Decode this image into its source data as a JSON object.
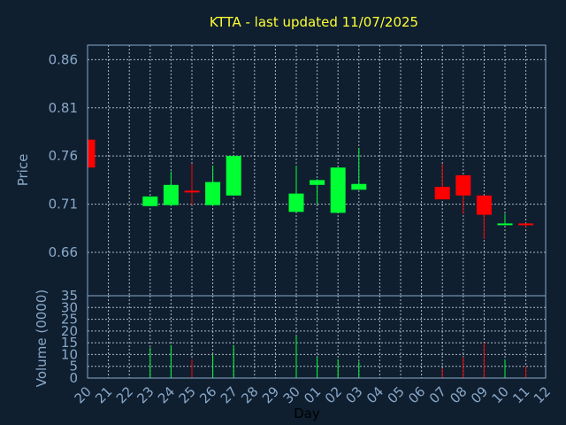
{
  "chart_data": {
    "type": "candlestick",
    "title": "KTTA - last updated 11/07/2025",
    "xlabel": "Day",
    "colors": {
      "background": "#0f1f30",
      "up": "#00ff33",
      "down": "#ff0000",
      "text": "#8aa8c8",
      "title": "#ffff33",
      "grid": "#c8d2dc"
    },
    "x_ticks": [
      "20",
      "21",
      "22",
      "23",
      "24",
      "25",
      "26",
      "27",
      "28",
      "29",
      "30",
      "01",
      "02",
      "03",
      "04",
      "05",
      "06",
      "07",
      "08",
      "09",
      "10",
      "11",
      "12"
    ],
    "price_panel": {
      "ylabel": "Price",
      "ylim": [
        0.615,
        0.875
      ],
      "y_ticks": [
        0.66,
        0.71,
        0.76,
        0.81,
        0.86
      ],
      "y_tick_labels": [
        "0.66",
        "0.71",
        "0.76",
        "0.81",
        "0.86"
      ]
    },
    "volume_panel": {
      "ylabel": "Volume (0000)",
      "ylim": [
        0,
        35
      ],
      "y_ticks": [
        0,
        5,
        10,
        15,
        20,
        25,
        30,
        35
      ],
      "y_tick_labels": [
        "0",
        "5",
        "10",
        "15",
        "20",
        "25",
        "30",
        "35"
      ]
    },
    "candles": [
      {
        "x": "20",
        "open": 0.777,
        "high": 0.777,
        "low": 0.748,
        "close": 0.748,
        "volume": 0
      },
      {
        "x": "23",
        "open": 0.708,
        "high": 0.718,
        "low": 0.708,
        "close": 0.718,
        "volume": 13
      },
      {
        "x": "24",
        "open": 0.709,
        "high": 0.744,
        "low": 0.709,
        "close": 0.73,
        "volume": 14
      },
      {
        "x": "25",
        "open": 0.724,
        "high": 0.752,
        "low": 0.709,
        "close": 0.723,
        "volume": 8
      },
      {
        "x": "26",
        "open": 0.709,
        "high": 0.75,
        "low": 0.709,
        "close": 0.733,
        "volume": 10
      },
      {
        "x": "27",
        "open": 0.719,
        "high": 0.76,
        "low": 0.719,
        "close": 0.76,
        "volume": 14
      },
      {
        "x": "30",
        "open": 0.702,
        "high": 0.75,
        "low": 0.702,
        "close": 0.721,
        "volume": 18
      },
      {
        "x": "01",
        "open": 0.73,
        "high": 0.736,
        "low": 0.71,
        "close": 0.735,
        "volume": 9
      },
      {
        "x": "02",
        "open": 0.701,
        "high": 0.748,
        "low": 0.701,
        "close": 0.748,
        "volume": 8
      },
      {
        "x": "03",
        "open": 0.725,
        "high": 0.768,
        "low": 0.725,
        "close": 0.731,
        "volume": 7
      },
      {
        "x": "07",
        "open": 0.728,
        "high": 0.752,
        "low": 0.715,
        "close": 0.715,
        "volume": 4
      },
      {
        "x": "08",
        "open": 0.74,
        "high": 0.74,
        "low": 0.7,
        "close": 0.719,
        "volume": 9
      },
      {
        "x": "09",
        "open": 0.719,
        "high": 0.719,
        "low": 0.674,
        "close": 0.699,
        "volume": 15
      },
      {
        "x": "10",
        "open": 0.689,
        "high": 0.7,
        "low": 0.689,
        "close": 0.69,
        "volume": 8
      },
      {
        "x": "11",
        "open": 0.69,
        "high": 0.69,
        "low": 0.686,
        "close": 0.689,
        "volume": 5
      }
    ]
  }
}
